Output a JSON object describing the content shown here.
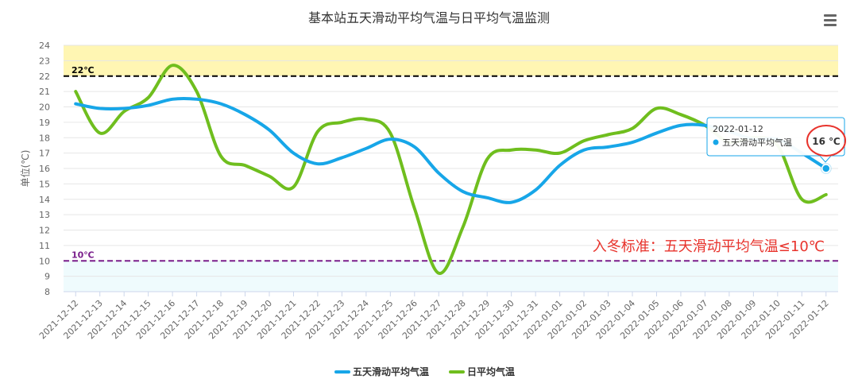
{
  "chart_data": {
    "type": "line",
    "title": "基本站五天滑动平均气温与日平均气温监测",
    "ylabel": "单位(℃)",
    "ylim": [
      8,
      24
    ],
    "yticks": [
      8,
      9,
      10,
      11,
      12,
      13,
      14,
      15,
      16,
      17,
      18,
      19,
      20,
      21,
      22,
      23,
      24
    ],
    "categories": [
      "2021-12-12",
      "2021-12-13",
      "2021-12-14",
      "2021-12-15",
      "2021-12-16",
      "2021-12-17",
      "2021-12-18",
      "2021-12-19",
      "2021-12-20",
      "2021-12-21",
      "2021-12-22",
      "2021-12-23",
      "2021-12-24",
      "2021-12-25",
      "2021-12-26",
      "2021-12-27",
      "2021-12-28",
      "2021-12-29",
      "2021-12-30",
      "2021-12-31",
      "2022-01-01",
      "2022-01-02",
      "2022-01-03",
      "2022-01-04",
      "2022-01-05",
      "2022-01-06",
      "2022-01-07",
      "2022-01-08",
      "2022-01-09",
      "2022-01-10",
      "2022-01-11",
      "2022-01-12"
    ],
    "series": [
      {
        "name": "五天滑动平均气温",
        "color": "#17a6e8",
        "values": [
          20.2,
          19.9,
          19.9,
          20.1,
          20.5,
          20.5,
          20.2,
          19.5,
          18.5,
          17.0,
          16.3,
          16.7,
          17.3,
          17.9,
          17.4,
          15.7,
          14.5,
          14.1,
          13.8,
          14.6,
          16.2,
          17.2,
          17.4,
          17.7,
          18.3,
          18.8,
          18.8,
          18.4,
          17.9,
          17.9,
          17.0,
          16.0
        ]
      },
      {
        "name": "日平均气温",
        "color": "#6fbe1e",
        "values": [
          21.0,
          18.3,
          19.7,
          20.6,
          22.7,
          21.0,
          16.8,
          16.2,
          15.5,
          14.8,
          18.4,
          19.0,
          19.2,
          18.3,
          13.4,
          9.2,
          12.2,
          16.6,
          17.2,
          17.2,
          17.0,
          17.8,
          18.2,
          18.6,
          19.9,
          19.5,
          18.8,
          17.7,
          18.0,
          17.5,
          14.0,
          14.3
        ]
      }
    ],
    "reference_lines": [
      {
        "label": "22℃",
        "value": 22,
        "color": "#000000"
      },
      {
        "label": "10℃",
        "value": 10,
        "color": "#7a1f8c"
      }
    ],
    "bands": [
      {
        "from": 22,
        "to": 24,
        "color": "#fff6b3"
      },
      {
        "from": 8,
        "to": 10,
        "color": "#effbfd"
      }
    ],
    "annotation": {
      "text": "入冬标准：五天滑动平均气温≤10℃",
      "color": "#e8332c"
    },
    "tooltip": {
      "date": "2022-01-12",
      "series_name": "五天滑动平均气温",
      "value_text": "16 ℃"
    },
    "grid": true,
    "legend_position": "bottom-center"
  },
  "ui": {
    "menu_icon": "hamburger-menu-icon"
  }
}
